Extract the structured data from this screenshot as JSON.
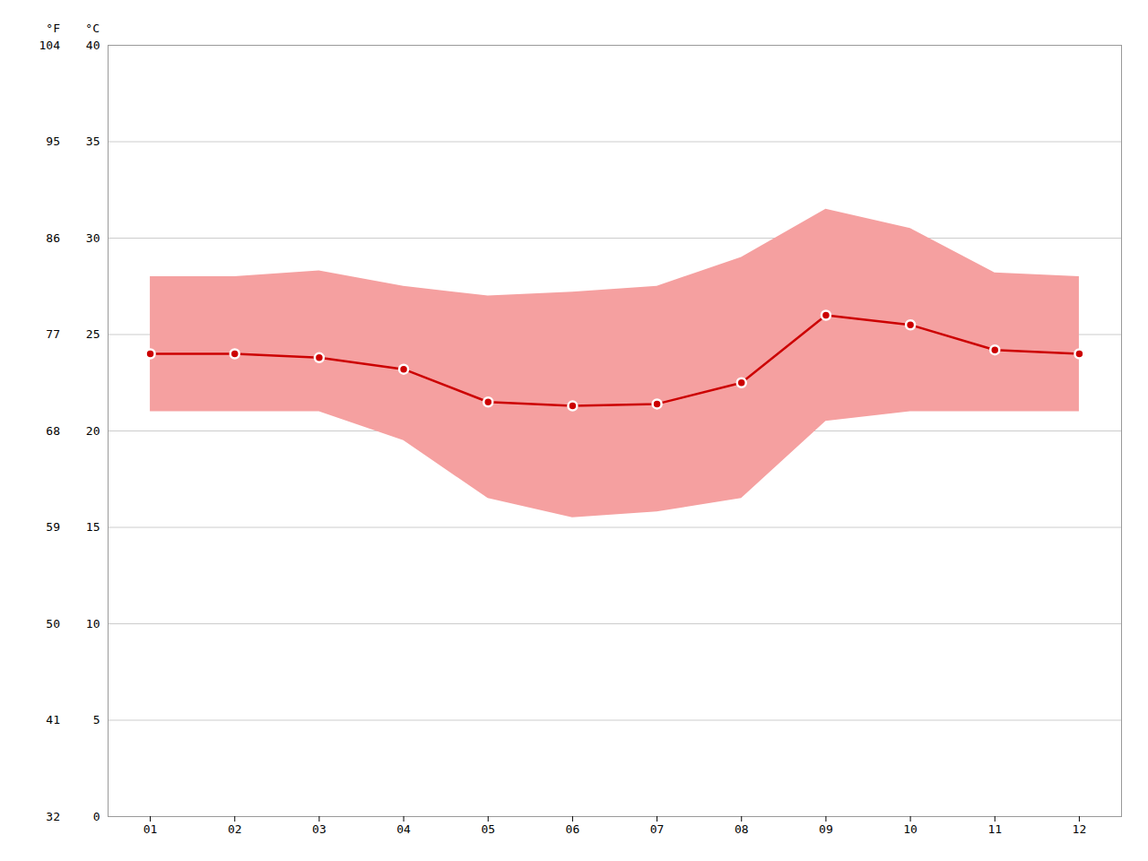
{
  "chart_data": {
    "type": "line",
    "x": [
      1,
      2,
      3,
      4,
      5,
      6,
      7,
      8,
      9,
      10,
      11,
      12
    ],
    "xlim": [
      0.5,
      12.5
    ],
    "xticks": [
      {
        "value": 1,
        "label": "01"
      },
      {
        "value": 2,
        "label": "02"
      },
      {
        "value": 3,
        "label": "03"
      },
      {
        "value": 4,
        "label": "04"
      },
      {
        "value": 5,
        "label": "05"
      },
      {
        "value": 6,
        "label": "06"
      },
      {
        "value": 7,
        "label": "07"
      },
      {
        "value": 8,
        "label": "08"
      },
      {
        "value": 9,
        "label": "09"
      },
      {
        "value": 10,
        "label": "10"
      },
      {
        "value": 11,
        "label": "11"
      },
      {
        "value": 12,
        "label": "12"
      }
    ],
    "ylabel": "°C",
    "ylim": [
      0,
      40
    ],
    "yticks": [
      0,
      5,
      10,
      15,
      20,
      25,
      30,
      35,
      40
    ],
    "y2label": "°F",
    "y2lim": [
      32,
      104
    ],
    "y2ticks": [
      32,
      41,
      50,
      59,
      68,
      77,
      86,
      95,
      104
    ],
    "grid": true,
    "series": [
      {
        "type": "area",
        "color": "#f5a0a0",
        "low": [
          21.0,
          21.0,
          21.0,
          19.5,
          16.5,
          15.5,
          15.8,
          16.5,
          20.5,
          21.0,
          21.0,
          21.0
        ],
        "high": [
          28.0,
          28.0,
          28.3,
          27.5,
          27.0,
          27.2,
          27.5,
          29.0,
          31.5,
          30.5,
          28.2,
          28.0
        ]
      },
      {
        "type": "line",
        "color": "#cc0000",
        "marker": "circle",
        "values": [
          24.0,
          24.0,
          23.8,
          23.2,
          21.5,
          21.3,
          21.4,
          22.5,
          26.0,
          25.5,
          24.2,
          24.0
        ]
      }
    ]
  }
}
